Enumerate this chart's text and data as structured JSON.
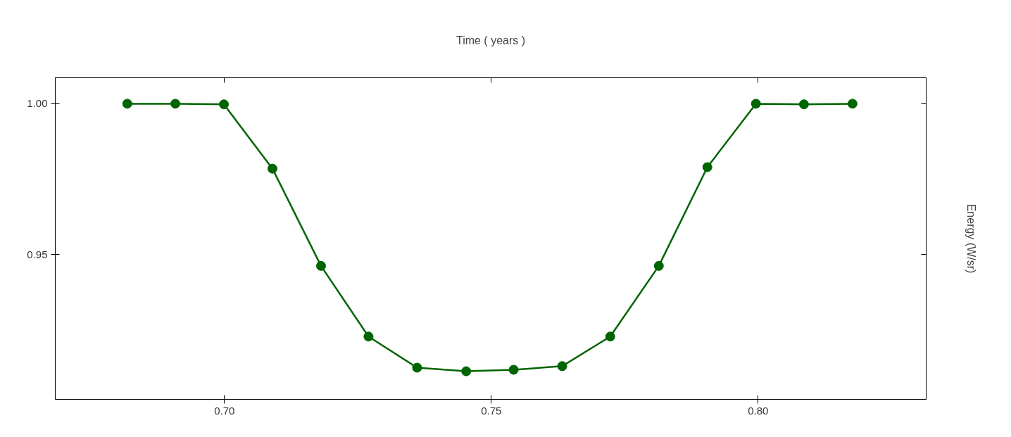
{
  "chart_data": {
    "type": "line",
    "xlabel": "Time ( years )",
    "ylabel": "Energy (W/sr)",
    "x": [
      0.6818,
      0.6908,
      0.6999,
      0.709,
      0.7181,
      0.727,
      0.7361,
      0.7453,
      0.7542,
      0.7633,
      0.7723,
      0.7814,
      0.7905,
      0.7996,
      0.8086,
      0.8177
    ],
    "series": [
      {
        "color": "#006400",
        "values": [
          1.0,
          1.0,
          0.9998,
          0.9785,
          0.9463,
          0.9229,
          0.9126,
          0.9114,
          0.9119,
          0.9131,
          0.9229,
          0.9463,
          0.979,
          1.0,
          0.9998,
          1.0
        ]
      }
    ],
    "xlim": [
      0.6683,
      0.8315
    ],
    "xticks": [
      {
        "value": 0.7,
        "label": "0.70"
      },
      0.75,
      {
        "value": 0.8,
        "label": "0.80"
      }
    ],
    "ylim": [
      0.9021,
      1.0086
    ],
    "yticks": [
      {
        "value": 0.95,
        "label": "0.95"
      },
      {
        "value": 1.0,
        "label": "1.00"
      }
    ],
    "grid": false,
    "marker": "circle",
    "line_style": "solid"
  }
}
